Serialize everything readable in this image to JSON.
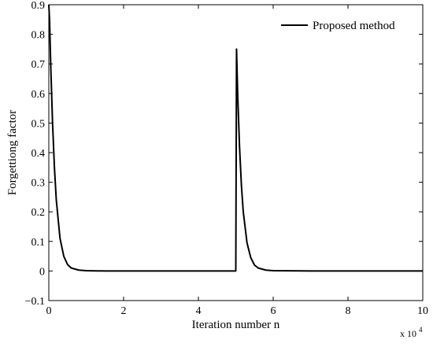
{
  "chart_data": {
    "type": "line",
    "title": "",
    "xlabel": "Iteration number n",
    "ylabel": "Forgettiong factor",
    "x_multiplier_label": "x 10",
    "x_multiplier_exponent": "4",
    "xlim": [
      0,
      10
    ],
    "ylim": [
      -0.1,
      0.9
    ],
    "xticks": [
      0,
      2,
      4,
      6,
      8,
      10
    ],
    "xtick_labels": [
      "0",
      "2",
      "4",
      "6",
      "8",
      "10"
    ],
    "yticks": [
      -0.1,
      0,
      0.1,
      0.2,
      0.3,
      0.4,
      0.5,
      0.6,
      0.7,
      0.8,
      0.9
    ],
    "ytick_labels": [
      "−0.1",
      "0",
      "0.1",
      "0.2",
      "0.3",
      "0.4",
      "0.5",
      "0.6",
      "0.7",
      "0.8",
      "0.9"
    ],
    "grid": false,
    "legend_position": "top-right",
    "line_color": "#000000",
    "series": [
      {
        "name": "Proposed method",
        "x": [
          0,
          0.02,
          0.05,
          0.1,
          0.15,
          0.2,
          0.3,
          0.4,
          0.5,
          0.6,
          0.8,
          1.0,
          1.5,
          2,
          3,
          4,
          4.98,
          5.0,
          5.02,
          5.05,
          5.1,
          5.15,
          5.2,
          5.3,
          5.4,
          5.5,
          5.6,
          5.8,
          6.0,
          7,
          8,
          9,
          10
        ],
        "y": [
          0.9,
          0.85,
          0.7,
          0.5,
          0.35,
          0.24,
          0.11,
          0.05,
          0.022,
          0.01,
          0.003,
          0.001,
          0,
          0,
          0,
          0,
          0,
          0,
          0.75,
          0.6,
          0.42,
          0.29,
          0.2,
          0.095,
          0.045,
          0.02,
          0.01,
          0.003,
          0.001,
          0,
          0,
          0,
          0
        ]
      }
    ]
  }
}
